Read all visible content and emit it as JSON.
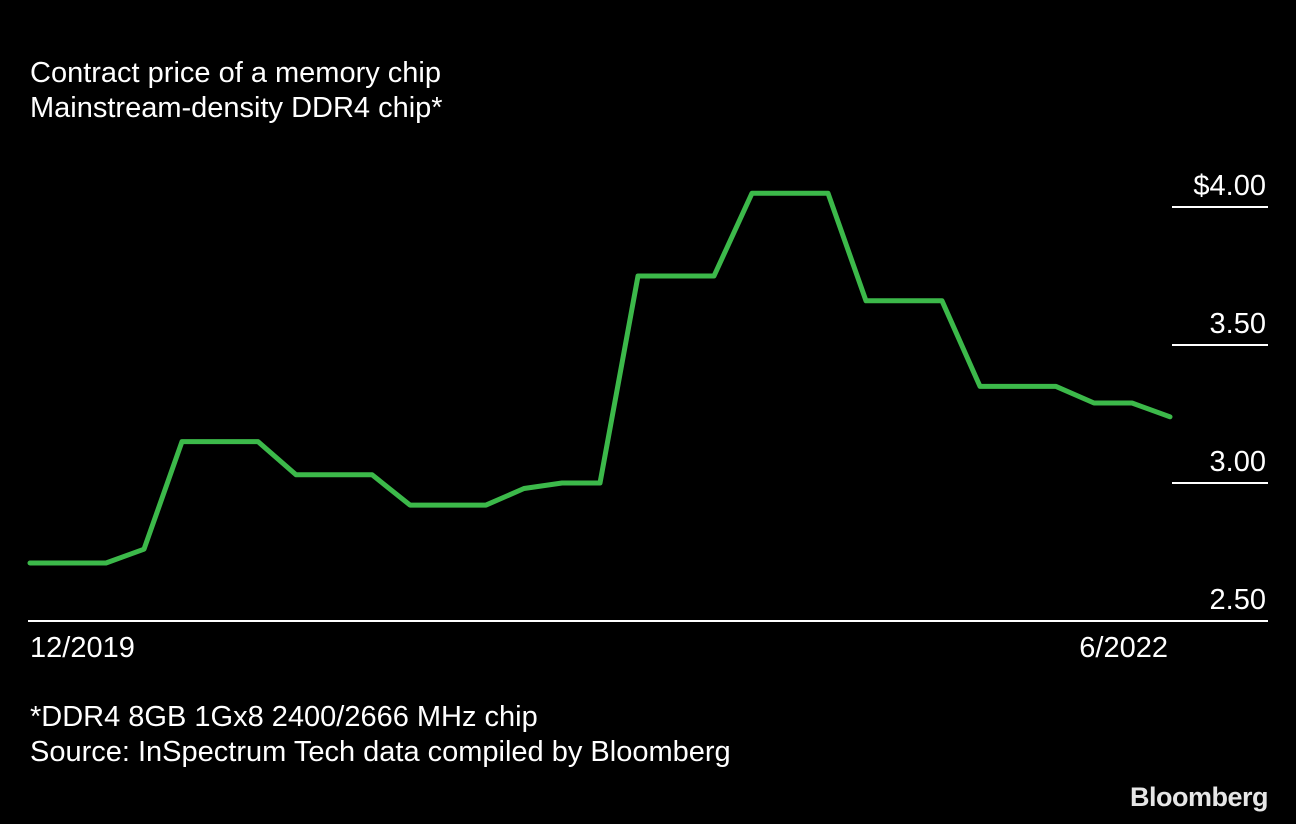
{
  "title": "Contract price of a memory chip",
  "subtitle": "Mainstream-density DDR4 chip*",
  "footnote": "*DDR4 8GB 1Gx8 2400/2666 MHz chip",
  "source": "Source: InSpectrum Tech data compiled by Bloomberg",
  "brand": "Bloomberg",
  "colors": {
    "background": "#000000",
    "line": "#3cb94a",
    "text": "#ffffff"
  },
  "chart_data": {
    "type": "line",
    "title": "Contract price of a memory chip",
    "subtitle": "Mainstream-density DDR4 chip*",
    "x_labels": [
      "12/2019",
      "6/2022"
    ],
    "y_ticks": [
      2.5,
      3.0,
      3.5,
      4.0
    ],
    "y_tick_labels": [
      "2.50",
      "3.00",
      "3.50",
      "$4.00"
    ],
    "ylim": [
      2.5,
      4.15
    ],
    "grid": false,
    "series": [
      {
        "values": [
          2.71,
          2.71,
          2.71,
          2.76,
          3.15,
          3.15,
          3.15,
          3.03,
          3.03,
          3.03,
          2.92,
          2.92,
          2.92,
          2.98,
          3.0,
          3.0,
          3.75,
          3.75,
          3.75,
          4.05,
          4.05,
          4.05,
          3.66,
          3.66,
          3.66,
          3.35,
          3.35,
          3.35,
          3.29,
          3.29,
          3.24
        ]
      }
    ]
  }
}
